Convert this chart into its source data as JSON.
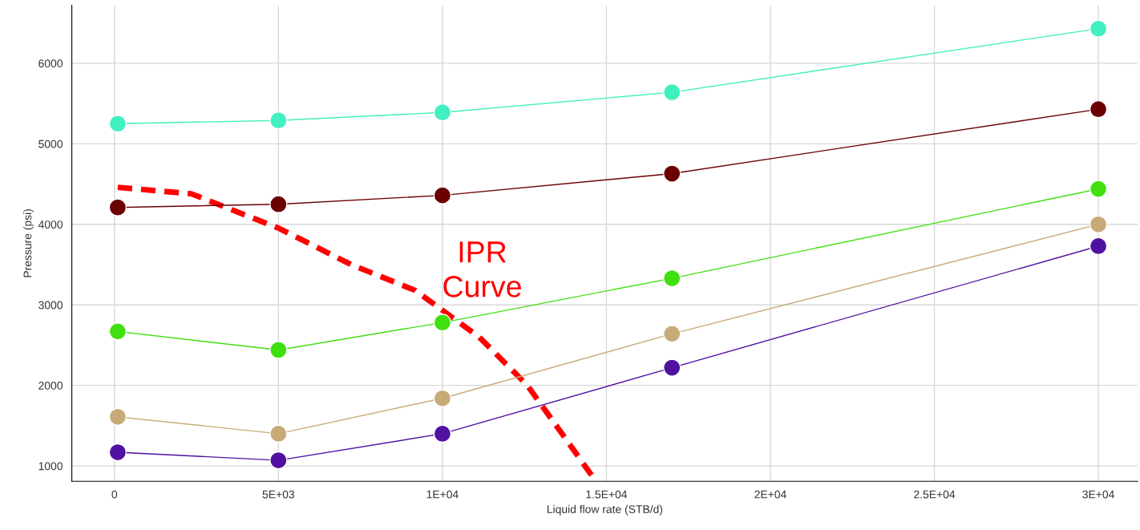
{
  "chart_data": {
    "type": "line",
    "xlabel": "Liquid flow rate (STB/d)",
    "ylabel": "Pressure (psi)",
    "xlim": [
      -1300,
      31200
    ],
    "ylim": [
      810,
      6720
    ],
    "xticks": [
      0,
      {
        "value": 5000,
        "label": "5E+03"
      },
      {
        "value": 10000,
        "label": "1E+04"
      },
      {
        "value": 15000,
        "label": "1.5E+04"
      },
      {
        "value": 20000,
        "label": "2E+04"
      },
      {
        "value": 25000,
        "label": "2.5E+04"
      },
      {
        "value": 30000,
        "label": "3E+04"
      }
    ],
    "yticks": [
      1000,
      2000,
      3000,
      4000,
      5000,
      6000
    ],
    "grid": true,
    "marker": "circle",
    "line_style": "solid",
    "x": [
      100,
      5000,
      10000,
      17000,
      30000
    ],
    "series": [
      {
        "color": "#40f0c0",
        "values": [
          5250,
          5290,
          5390,
          5640,
          6430
        ]
      },
      {
        "color": "#6b0000",
        "values": [
          4210,
          4250,
          4360,
          4630,
          5430
        ]
      },
      {
        "color": "#40e010",
        "values": [
          2670,
          2440,
          2780,
          3330,
          4440
        ]
      },
      {
        "color": "#c8aa78",
        "values": [
          1610,
          1400,
          1840,
          2640,
          4000
        ]
      },
      {
        "color": "#5010a0",
        "values": [
          1170,
          1070,
          1400,
          2220,
          3730
        ]
      },
      {
        "type": "line",
        "color": "#ff0000",
        "marker": "none",
        "line_style": "dashed",
        "x": [
          100,
          2340,
          5020,
          7220,
          9170,
          11120,
          12590,
          13560,
          14660
        ],
        "values": [
          4460,
          4380,
          3950,
          3500,
          3180,
          2600,
          2000,
          1450,
          820
        ]
      }
    ],
    "annotations": [
      "IPR\nCurve"
    ]
  }
}
